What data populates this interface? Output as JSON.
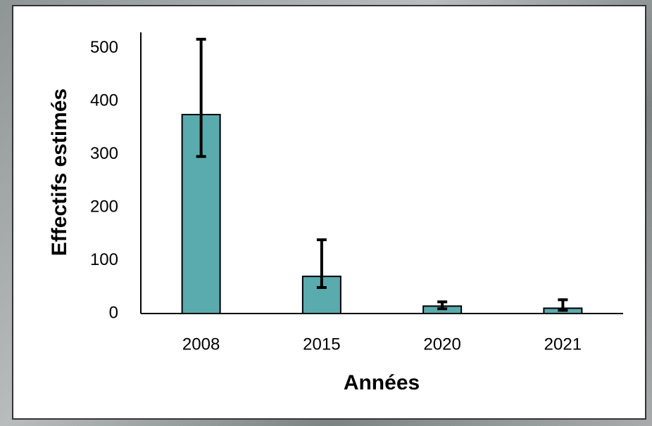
{
  "chart_data": {
    "type": "bar",
    "x_label": "Années",
    "y_label": "Effectifs estimés",
    "categories": [
      "2008",
      "2015",
      "2020",
      "2021"
    ],
    "values": [
      375,
      70,
      14,
      10
    ],
    "error_lower": [
      296,
      49,
      9,
      6
    ],
    "error_upper": [
      517,
      139,
      22,
      26
    ],
    "color": "#5aabae",
    "ylim": [
      0,
      530
    ],
    "yticks": [
      0,
      100,
      200,
      300,
      400,
      500
    ],
    "grid": false
  }
}
